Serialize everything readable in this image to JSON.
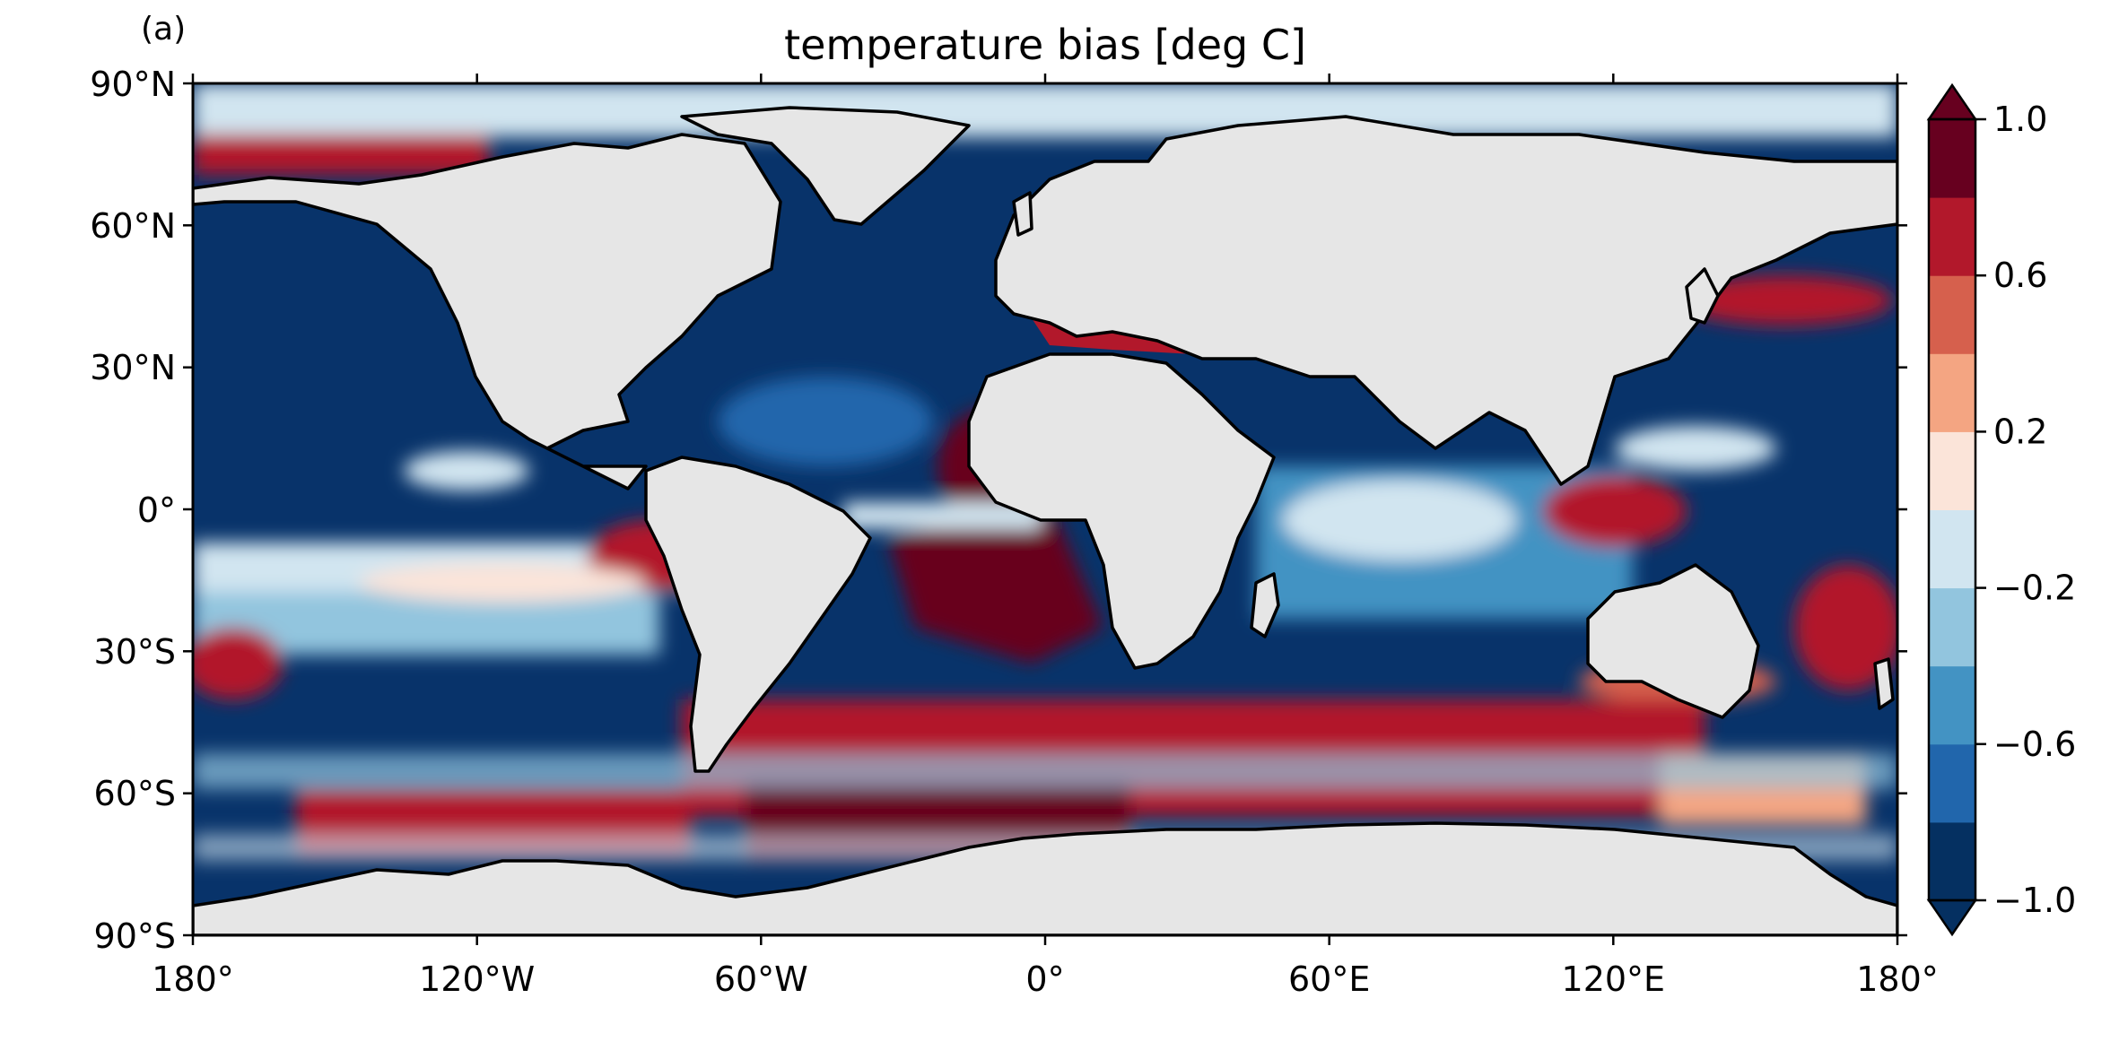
{
  "panel_label": "(a)",
  "title": "temperature bias [deg C]",
  "x_ticks": [
    "180°",
    "120°W",
    "60°W",
    "0°",
    "60°E",
    "120°E",
    "180°"
  ],
  "y_ticks": [
    "90°N",
    "60°N",
    "30°N",
    "0°",
    "30°S",
    "60°S",
    "90°S"
  ],
  "colorbar": {
    "tick_labels": [
      "1.0",
      "0.6",
      "0.2",
      "−0.2",
      "−0.6",
      "−1.0"
    ],
    "colors": [
      "#053061",
      "#2166ac",
      "#4393c3",
      "#92c5de",
      "#d1e5f0",
      "#fbe4d9",
      "#f4a582",
      "#d6604d",
      "#b2182b",
      "#67001f"
    ],
    "extend": "both"
  },
  "colors": {
    "land": "#e6e6e6",
    "ocean_base": "#08336a",
    "coastline": "#000000"
  }
}
